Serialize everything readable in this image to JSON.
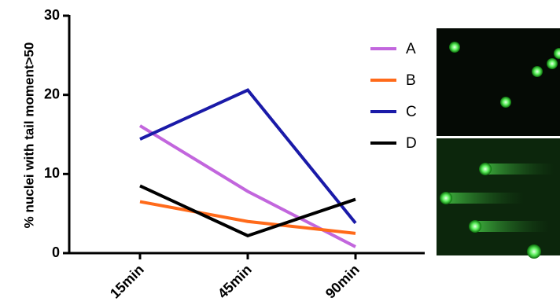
{
  "chart_data": {
    "type": "line",
    "y_label": "% nuclei with tail moment>50",
    "categories": [
      "15min",
      "45min",
      "90min"
    ],
    "series": [
      {
        "name": "A",
        "color": "#c266dd",
        "values": [
          16.1,
          7.8,
          0.8
        ]
      },
      {
        "name": "B",
        "color": "#ff6a1a",
        "values": [
          6.5,
          4.0,
          2.5
        ]
      },
      {
        "name": "C",
        "color": "#1a1aa8",
        "values": [
          14.4,
          20.6,
          3.8
        ]
      },
      {
        "name": "D",
        "color": "#000000",
        "values": [
          8.5,
          2.2,
          6.8
        ]
      }
    ],
    "ylim": [
      0,
      30
    ],
    "yticks": [
      0,
      10,
      20,
      30
    ]
  }
}
